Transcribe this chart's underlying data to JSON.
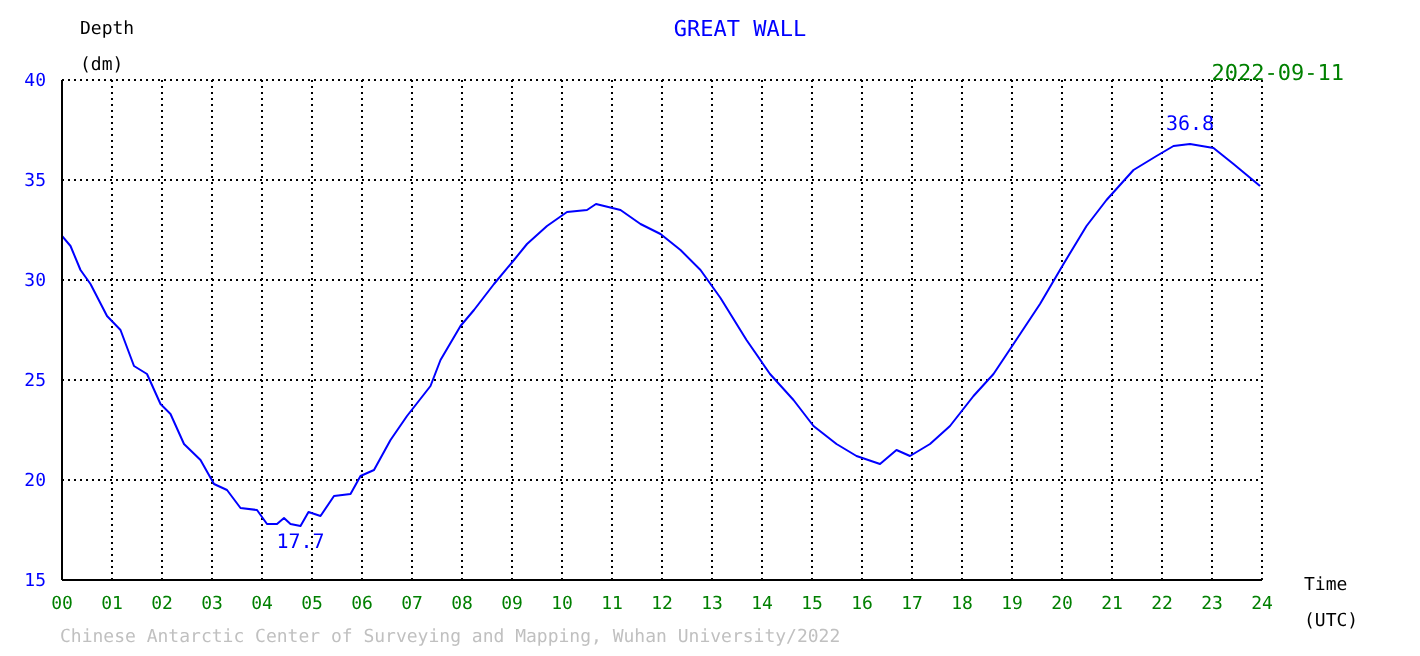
{
  "chart_data": {
    "type": "line",
    "title": "GREAT WALL",
    "xlabel": "Time (UTC)",
    "ylabel": "Depth (dm)",
    "x": [
      0,
      0.17,
      0.37,
      0.57,
      0.9,
      1.17,
      1.44,
      1.7,
      1.97,
      2.17,
      2.44,
      2.77,
      3.04,
      3.3,
      3.57,
      3.9,
      4.1,
      4.3,
      4.44,
      4.57,
      4.77,
      4.93,
      5.17,
      5.44,
      5.77,
      5.97,
      6.24,
      6.57,
      6.9,
      7.37,
      7.57,
      7.97,
      8.24,
      8.64,
      9.04,
      9.3,
      9.7,
      10.1,
      10.5,
      10.68,
      11.17,
      11.57,
      11.97,
      12.37,
      12.77,
      13.17,
      13.69,
      14.16,
      14.63,
      15.03,
      15.49,
      15.89,
      16.36,
      16.69,
      16.96,
      17.36,
      17.76,
      18.23,
      18.63,
      19.03,
      19.56,
      20.03,
      20.49,
      20.89,
      21.43,
      21.89,
      22.23,
      22.56,
      23.03,
      23.43,
      23.96
    ],
    "series": [
      {
        "color": "#0000ff",
        "values": [
          32.2,
          31.7,
          30.5,
          29.8,
          28.2,
          27.5,
          25.7,
          25.3,
          23.8,
          23.3,
          21.8,
          21.0,
          19.8,
          19.5,
          18.6,
          18.5,
          17.8,
          17.8,
          18.1,
          17.8,
          17.7,
          18.4,
          18.2,
          19.2,
          19.3,
          20.2,
          20.5,
          22.0,
          23.2,
          24.7,
          26.0,
          27.7,
          28.5,
          29.8,
          31.0,
          31.8,
          32.7,
          33.4,
          33.5,
          33.8,
          33.5,
          32.8,
          32.3,
          31.5,
          30.5,
          29.1,
          27.0,
          25.3,
          24.0,
          22.7,
          21.8,
          21.2,
          20.8,
          21.5,
          21.2,
          21.8,
          22.7,
          24.2,
          25.3,
          26.8,
          28.8,
          30.8,
          32.7,
          34.0,
          35.5,
          36.2,
          36.7,
          36.8,
          36.6,
          35.8,
          34.7
        ]
      }
    ],
    "xlim": [
      0,
      24
    ],
    "xticks": [
      {
        "value": 0,
        "label": "00"
      },
      {
        "value": 1,
        "label": "01"
      },
      {
        "value": 2,
        "label": "02"
      },
      {
        "value": 3,
        "label": "03"
      },
      {
        "value": 4,
        "label": "04"
      },
      {
        "value": 5,
        "label": "05"
      },
      {
        "value": 6,
        "label": "06"
      },
      {
        "value": 7,
        "label": "07"
      },
      {
        "value": 8,
        "label": "08"
      },
      {
        "value": 9,
        "label": "09"
      },
      10,
      11,
      12,
      13,
      14,
      15,
      16,
      17,
      18,
      19,
      20,
      21,
      22,
      23,
      24
    ],
    "ylim": [
      15,
      40
    ],
    "yticks": [
      15,
      20,
      25,
      30,
      35,
      40
    ],
    "grid": true,
    "marker": "none",
    "line_style": "solid",
    "legend": false,
    "annotations": [
      {
        "text": "17.7",
        "x": 4.77,
        "y": 17.7
      },
      {
        "text": "36.8",
        "x": 22.56,
        "y": 36.8
      },
      "2022-09-11",
      "Chinese Antarctic Center of Surveying and Mapping, Wuhan University/2022"
    ]
  }
}
